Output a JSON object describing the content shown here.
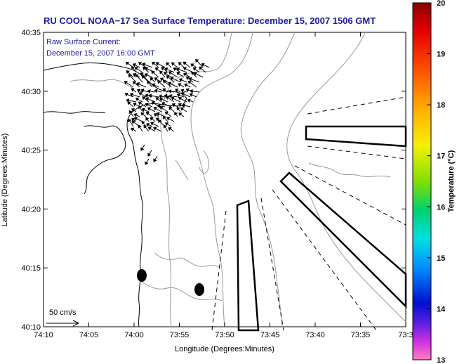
{
  "title": "RU COOL  NOAA−17  Sea Surface Temperature:  December 15, 2007 1506 GMT",
  "annotation": {
    "line1": "Raw Surface Current:",
    "line2": "December 15, 2007 16:00 GMT"
  },
  "scale_label": "50 cm/s",
  "colors": {
    "title": "#1a1aa6",
    "contour": "#9a9a9a",
    "coastline": "#000000"
  },
  "chart_data": {
    "type": "map",
    "xlabel": "Longitude (Degrees:Minutes)",
    "ylabel": "Latitude (Degrees:Minutes)",
    "x_ticks": [
      "74:10",
      "74:05",
      "74:00",
      "73:55",
      "73:50",
      "73:45",
      "73:40",
      "73:35",
      "73:3"
    ],
    "y_ticks": [
      "40:35",
      "40:30",
      "40:25",
      "40:20",
      "40:15",
      "40:10"
    ],
    "colorbar": {
      "label": "Temperature (°C)",
      "min": 13,
      "max": 20,
      "ticks": [
        "20",
        "19",
        "18",
        "17",
        "16",
        "15",
        "14",
        "13"
      ]
    }
  }
}
